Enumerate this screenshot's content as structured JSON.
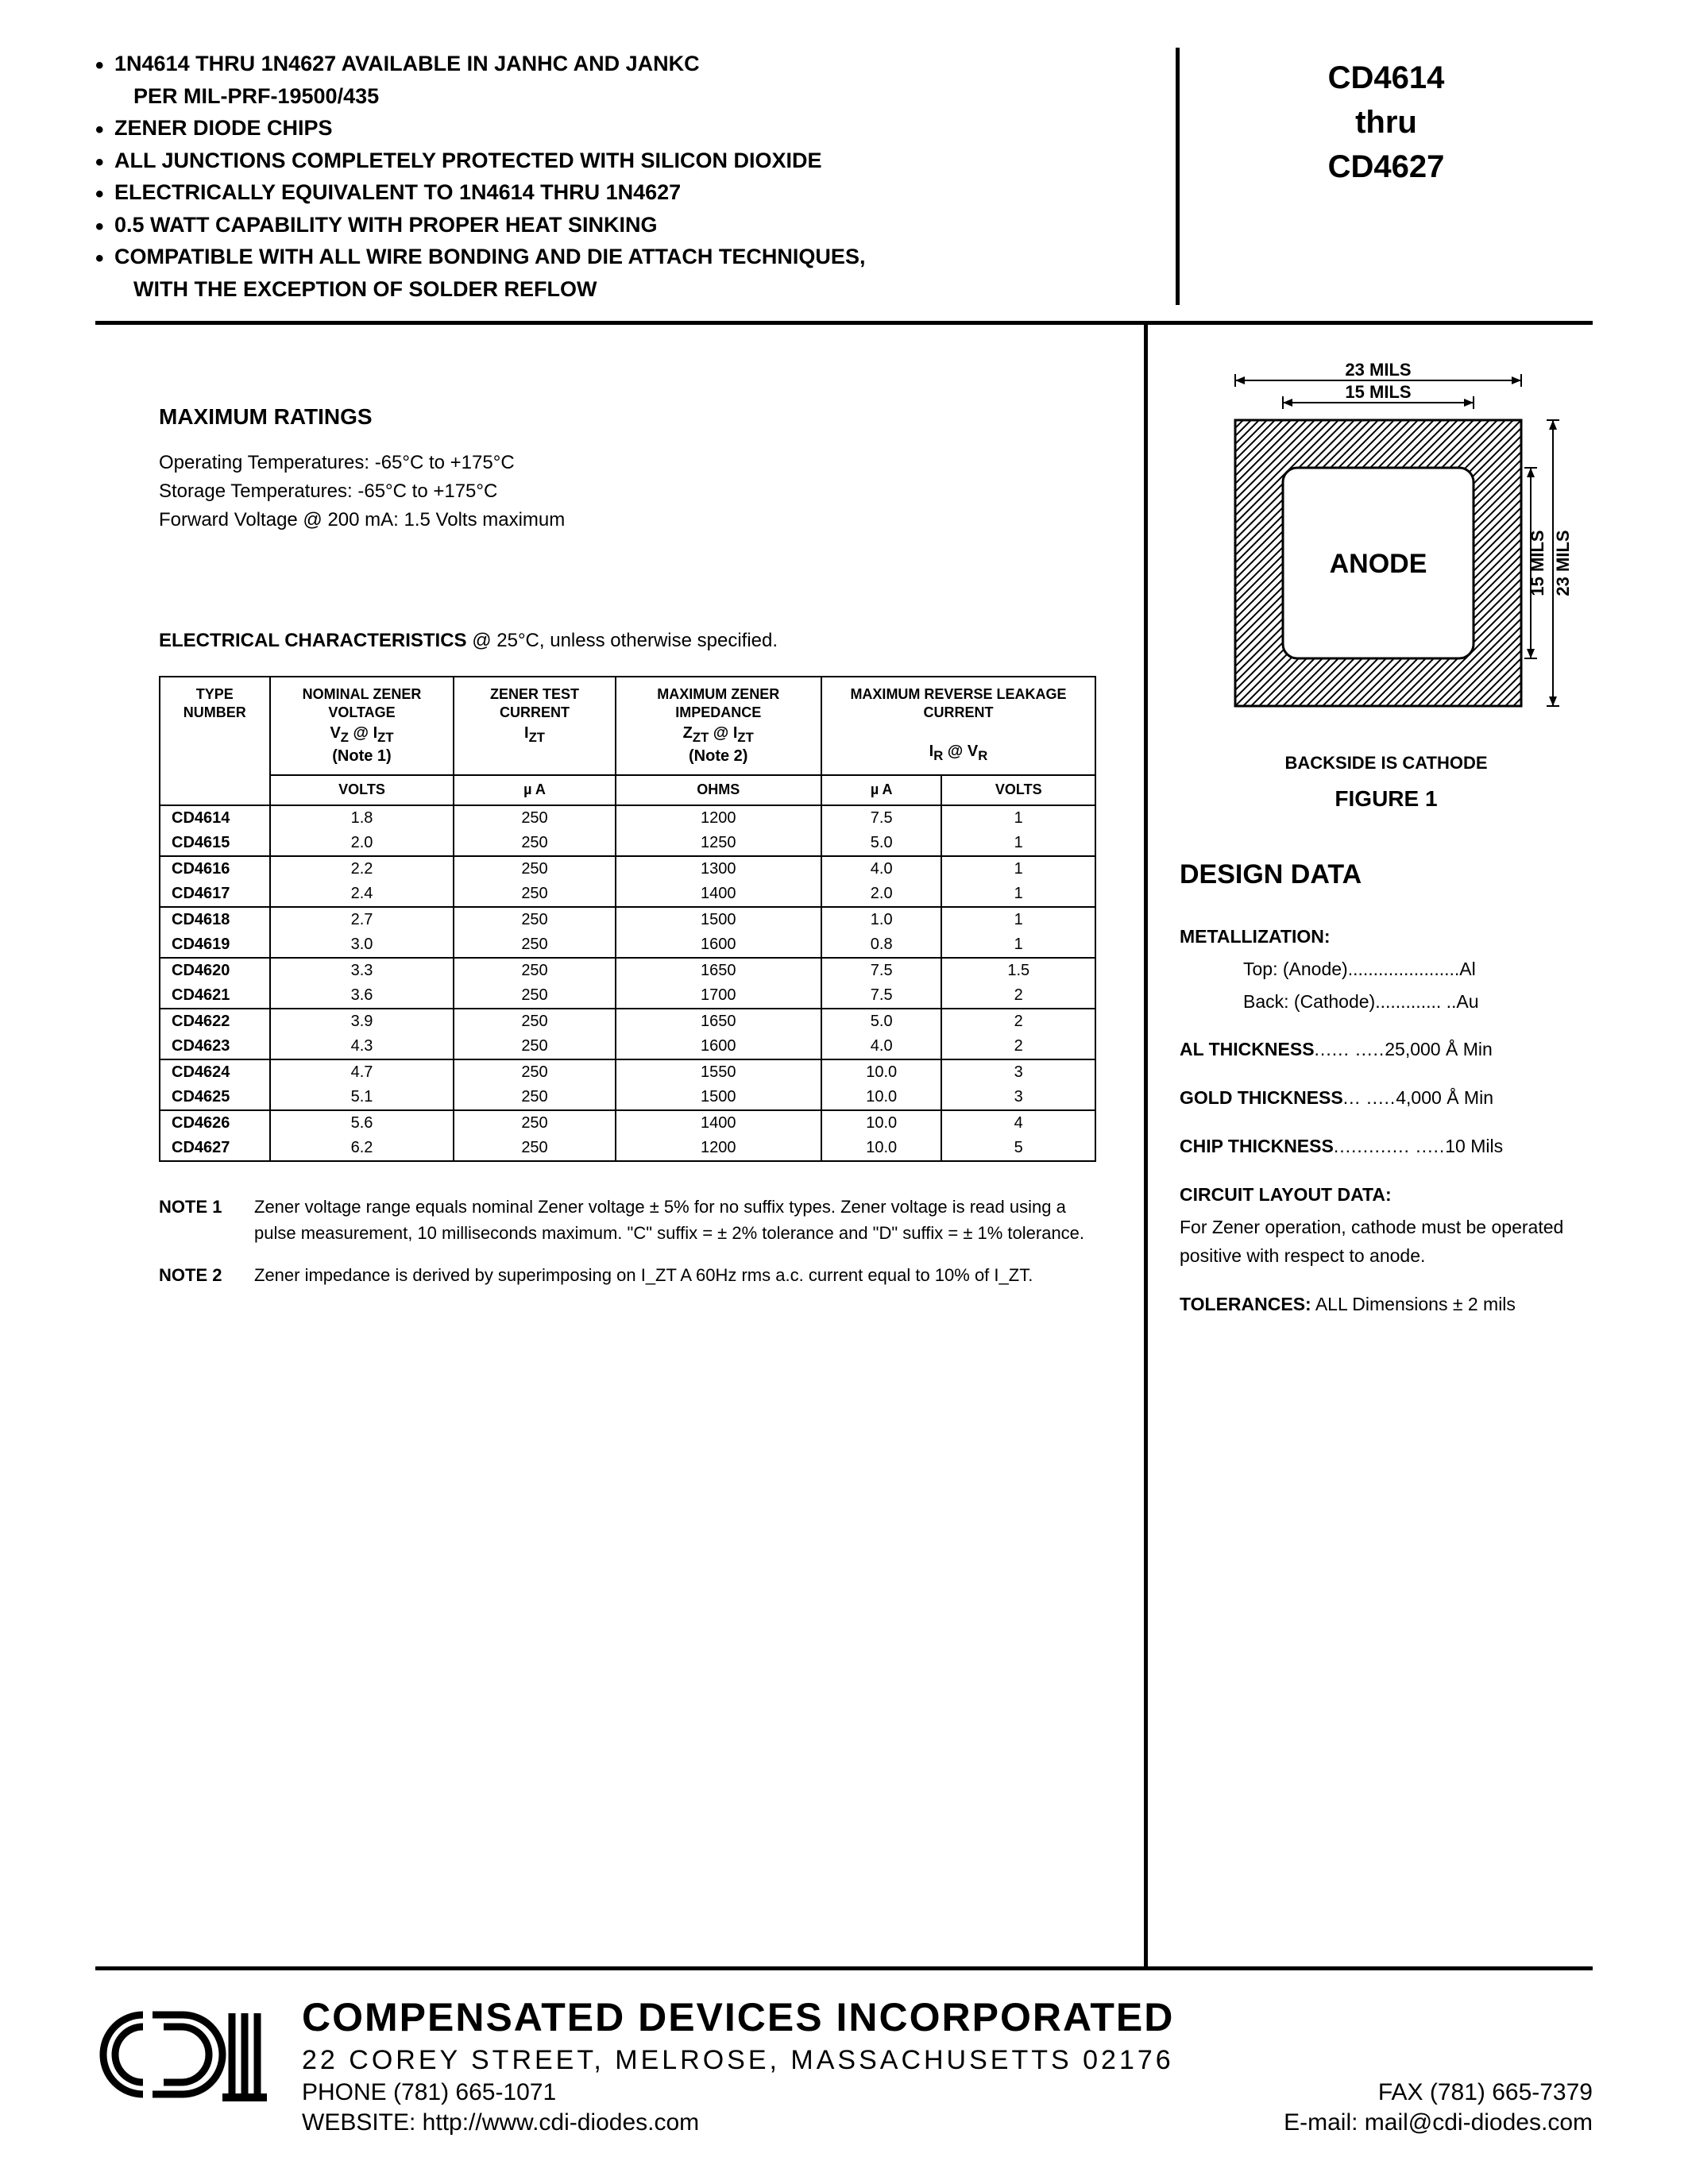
{
  "header": {
    "features": [
      {
        "text": "1N4614 THRU 1N4627 AVAILABLE IN JANHC AND JANKC",
        "sub": "PER MIL-PRF-19500/435"
      },
      {
        "text": "ZENER DIODE CHIPS"
      },
      {
        "text": "ALL JUNCTIONS COMPLETELY PROTECTED WITH SILICON DIOXIDE"
      },
      {
        "text": "ELECTRICALLY EQUIVALENT TO 1N4614 THRU 1N4627"
      },
      {
        "text": "0.5 WATT CAPABILITY WITH PROPER HEAT SINKING"
      },
      {
        "text": "COMPATIBLE WITH ALL WIRE BONDING AND DIE ATTACH TECHNIQUES,",
        "sub": "WITH THE EXCEPTION OF SOLDER REFLOW"
      }
    ],
    "part_top": "CD4614",
    "part_mid": "thru",
    "part_bot": "CD4627"
  },
  "ratings": {
    "heading": "MAXIMUM RATINGS",
    "lines": [
      "Operating Temperatures: -65°C to +175°C",
      "Storage Temperatures: -65°C to +175°C",
      "Forward Voltage @ 200 mA: 1.5 Volts maximum"
    ]
  },
  "elec": {
    "heading_bold": "ELECTRICAL CHARACTERISTICS",
    "heading_rest": " @ 25°C, unless otherwise specified.",
    "columns": {
      "c1": "TYPE NUMBER",
      "c2": "NOMINAL ZENER VOLTAGE",
      "c2_sub": "V_Z @ I_ZT",
      "c2_note": "(Note 1)",
      "c3": "ZENER TEST CURRENT",
      "c3_sub": "I_ZT",
      "c4": "MAXIMUM ZENER IMPEDANCE",
      "c4_sub": "Z_ZT @ I_ZT",
      "c4_note": "(Note 2)",
      "c5": "MAXIMUM REVERSE LEAKAGE CURRENT",
      "c5_sub": "I_R @ V_R"
    },
    "units": {
      "u2": "VOLTS",
      "u3": "µ A",
      "u4": "OHMS",
      "u5": "µ A",
      "u6": "VOLTS"
    },
    "rows": [
      {
        "type": "CD4614",
        "vz": "1.8",
        "izt": "250",
        "zzt": "1200",
        "ir": "7.5",
        "vr": "1",
        "end": false
      },
      {
        "type": "CD4615",
        "vz": "2.0",
        "izt": "250",
        "zzt": "1250",
        "ir": "5.0",
        "vr": "1",
        "end": true
      },
      {
        "type": "CD4616",
        "vz": "2.2",
        "izt": "250",
        "zzt": "1300",
        "ir": "4.0",
        "vr": "1",
        "end": false
      },
      {
        "type": "CD4617",
        "vz": "2.4",
        "izt": "250",
        "zzt": "1400",
        "ir": "2.0",
        "vr": "1",
        "end": true
      },
      {
        "type": "CD4618",
        "vz": "2.7",
        "izt": "250",
        "zzt": "1500",
        "ir": "1.0",
        "vr": "1",
        "end": false
      },
      {
        "type": "CD4619",
        "vz": "3.0",
        "izt": "250",
        "zzt": "1600",
        "ir": "0.8",
        "vr": "1",
        "end": true
      },
      {
        "type": "CD4620",
        "vz": "3.3",
        "izt": "250",
        "zzt": "1650",
        "ir": "7.5",
        "vr": "1.5",
        "end": false
      },
      {
        "type": "CD4621",
        "vz": "3.6",
        "izt": "250",
        "zzt": "1700",
        "ir": "7.5",
        "vr": "2",
        "end": true
      },
      {
        "type": "CD4622",
        "vz": "3.9",
        "izt": "250",
        "zzt": "1650",
        "ir": "5.0",
        "vr": "2",
        "end": false
      },
      {
        "type": "CD4623",
        "vz": "4.3",
        "izt": "250",
        "zzt": "1600",
        "ir": "4.0",
        "vr": "2",
        "end": true
      },
      {
        "type": "CD4624",
        "vz": "4.7",
        "izt": "250",
        "zzt": "1550",
        "ir": "10.0",
        "vr": "3",
        "end": false
      },
      {
        "type": "CD4625",
        "vz": "5.1",
        "izt": "250",
        "zzt": "1500",
        "ir": "10.0",
        "vr": "3",
        "end": true
      },
      {
        "type": "CD4626",
        "vz": "5.6",
        "izt": "250",
        "zzt": "1400",
        "ir": "10.0",
        "vr": "4",
        "end": false
      },
      {
        "type": "CD4627",
        "vz": "6.2",
        "izt": "250",
        "zzt": "1200",
        "ir": "10.0",
        "vr": "5",
        "end": true
      }
    ],
    "note1_label": "NOTE 1",
    "note1": "Zener voltage range equals nominal Zener voltage ± 5% for no suffix types. Zener voltage is read using a pulse measurement, 10 milliseconds maximum. \"C\" suffix = ± 2% tolerance and \"D\" suffix = ± 1% tolerance.",
    "note2_label": "NOTE 2",
    "note2": "Zener impedance is derived by superimposing on I_ZT A 60Hz rms a.c. current equal to 10% of I_ZT."
  },
  "figure": {
    "dim_outer": "23 MILS",
    "dim_inner": "15 MILS",
    "anode": "ANODE",
    "caption": "BACKSIDE IS CATHODE",
    "title": "FIGURE 1"
  },
  "design": {
    "heading": "DESIGN DATA",
    "metallization_label": "METALLIZATION:",
    "met_top": "Top: (Anode)......................Al",
    "met_back": "Back: (Cathode)............. ..Au",
    "al_thickness": "AL THICKNESS...... .....25,000 Å Min",
    "gold_thickness": "GOLD THICKNESS... .....4,000 Å Min",
    "chip_thickness": "CHIP THICKNESS............. .....10 Mils",
    "circuit_label": "CIRCUIT LAYOUT DATA:",
    "circuit_text": "For Zener operation, cathode must be operated positive with respect to anode.",
    "tol_label": "TOLERANCES:",
    "tol_text": " ALL Dimensions ± 2 mils"
  },
  "footer": {
    "company": "COMPENSATED DEVICES INCORPORATED",
    "address": "22 COREY STREET, MELROSE, MASSACHUSETTS 02176",
    "phone": "PHONE (781) 665-1071",
    "fax": "FAX (781) 665-7379",
    "website": "WEBSITE:  http://www.cdi-diodes.com",
    "email": "E-mail: mail@cdi-diodes.com"
  }
}
